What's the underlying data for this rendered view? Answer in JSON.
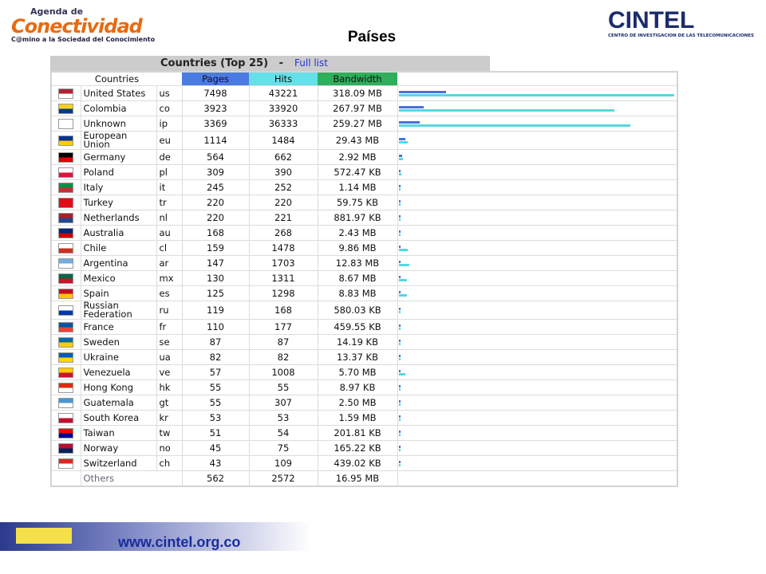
{
  "header": {
    "left_logo": {
      "line1": "Agenda de",
      "line2": "Conectividad",
      "tagline": "C@mino a la Sociedad del Conocimiento"
    },
    "title": "Países",
    "right_logo": {
      "name": "CINTEL",
      "tagline": "CENTRO DE INVESTIGACION DE LAS TELECOMUNICACIONES"
    }
  },
  "table": {
    "title": "Countries (Top 25)",
    "separator": "-",
    "link": "Full list",
    "columns": [
      "Countries",
      "Pages",
      "Hits",
      "Bandwidth"
    ],
    "rows": [
      {
        "name": "United States",
        "code": "us",
        "pages": 7498,
        "hits": 43221,
        "bandwidth": "318.09 MB"
      },
      {
        "name": "Colombia",
        "code": "co",
        "pages": 3923,
        "hits": 33920,
        "bandwidth": "267.97 MB"
      },
      {
        "name": "Unknown",
        "code": "ip",
        "pages": 3369,
        "hits": 36333,
        "bandwidth": "259.27 MB"
      },
      {
        "name": "European Union",
        "code": "eu",
        "pages": 1114,
        "hits": 1484,
        "bandwidth": "29.43 MB"
      },
      {
        "name": "Germany",
        "code": "de",
        "pages": 564,
        "hits": 662,
        "bandwidth": "2.92 MB"
      },
      {
        "name": "Poland",
        "code": "pl",
        "pages": 309,
        "hits": 390,
        "bandwidth": "572.47 KB"
      },
      {
        "name": "Italy",
        "code": "it",
        "pages": 245,
        "hits": 252,
        "bandwidth": "1.14 MB"
      },
      {
        "name": "Turkey",
        "code": "tr",
        "pages": 220,
        "hits": 220,
        "bandwidth": "59.75 KB"
      },
      {
        "name": "Netherlands",
        "code": "nl",
        "pages": 220,
        "hits": 221,
        "bandwidth": "881.97 KB"
      },
      {
        "name": "Australia",
        "code": "au",
        "pages": 168,
        "hits": 268,
        "bandwidth": "2.43 MB"
      },
      {
        "name": "Chile",
        "code": "cl",
        "pages": 159,
        "hits": 1478,
        "bandwidth": "9.86 MB"
      },
      {
        "name": "Argentina",
        "code": "ar",
        "pages": 147,
        "hits": 1703,
        "bandwidth": "12.83 MB"
      },
      {
        "name": "Mexico",
        "code": "mx",
        "pages": 130,
        "hits": 1311,
        "bandwidth": "8.67 MB"
      },
      {
        "name": "Spain",
        "code": "es",
        "pages": 125,
        "hits": 1298,
        "bandwidth": "8.83 MB"
      },
      {
        "name": "Russian Federation",
        "code": "ru",
        "pages": 119,
        "hits": 168,
        "bandwidth": "580.03 KB"
      },
      {
        "name": "France",
        "code": "fr",
        "pages": 110,
        "hits": 177,
        "bandwidth": "459.55 KB"
      },
      {
        "name": "Sweden",
        "code": "se",
        "pages": 87,
        "hits": 87,
        "bandwidth": "14.19 KB"
      },
      {
        "name": "Ukraine",
        "code": "ua",
        "pages": 82,
        "hits": 82,
        "bandwidth": "13.37 KB"
      },
      {
        "name": "Venezuela",
        "code": "ve",
        "pages": 57,
        "hits": 1008,
        "bandwidth": "5.70 MB"
      },
      {
        "name": "Hong Kong",
        "code": "hk",
        "pages": 55,
        "hits": 55,
        "bandwidth": "8.97 KB"
      },
      {
        "name": "Guatemala",
        "code": "gt",
        "pages": 55,
        "hits": 307,
        "bandwidth": "2.50 MB"
      },
      {
        "name": "South Korea",
        "code": "kr",
        "pages": 53,
        "hits": 53,
        "bandwidth": "1.59 MB"
      },
      {
        "name": "Taiwan",
        "code": "tw",
        "pages": 51,
        "hits": 54,
        "bandwidth": "201.81 KB"
      },
      {
        "name": "Norway",
        "code": "no",
        "pages": 45,
        "hits": 75,
        "bandwidth": "165.22 KB"
      },
      {
        "name": "Switzerland",
        "code": "ch",
        "pages": 43,
        "hits": 109,
        "bandwidth": "439.02 KB"
      }
    ],
    "others": {
      "name": "Others",
      "pages": 562,
      "hits": 2572,
      "bandwidth": "16.95 MB"
    }
  },
  "footer": {
    "url": "www.cintel.org.co"
  }
}
